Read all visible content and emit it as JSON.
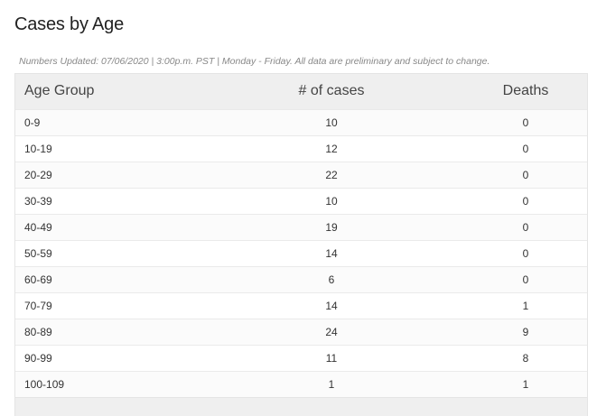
{
  "page": {
    "title": "Cases by Age",
    "update_note": "Numbers Updated: 07/06/2020 | 3:00p.m. PST | Monday - Friday. All data are preliminary and subject to change."
  },
  "table": {
    "headers": {
      "age_group": "Age Group",
      "cases": "# of cases",
      "deaths": "Deaths"
    },
    "rows": [
      {
        "age": "0-9",
        "cases": "10",
        "deaths": "0"
      },
      {
        "age": "10-19",
        "cases": "12",
        "deaths": "0"
      },
      {
        "age": "20-29",
        "cases": "22",
        "deaths": "0"
      },
      {
        "age": "30-39",
        "cases": "10",
        "deaths": "0"
      },
      {
        "age": "40-49",
        "cases": "19",
        "deaths": "0"
      },
      {
        "age": "50-59",
        "cases": "14",
        "deaths": "0"
      },
      {
        "age": "60-69",
        "cases": "6",
        "deaths": "0"
      },
      {
        "age": "70-79",
        "cases": "14",
        "deaths": "1"
      },
      {
        "age": "80-89",
        "cases": "24",
        "deaths": "9"
      },
      {
        "age": "90-99",
        "cases": "11",
        "deaths": "8"
      },
      {
        "age": "100-109",
        "cases": "1",
        "deaths": "1"
      }
    ]
  }
}
